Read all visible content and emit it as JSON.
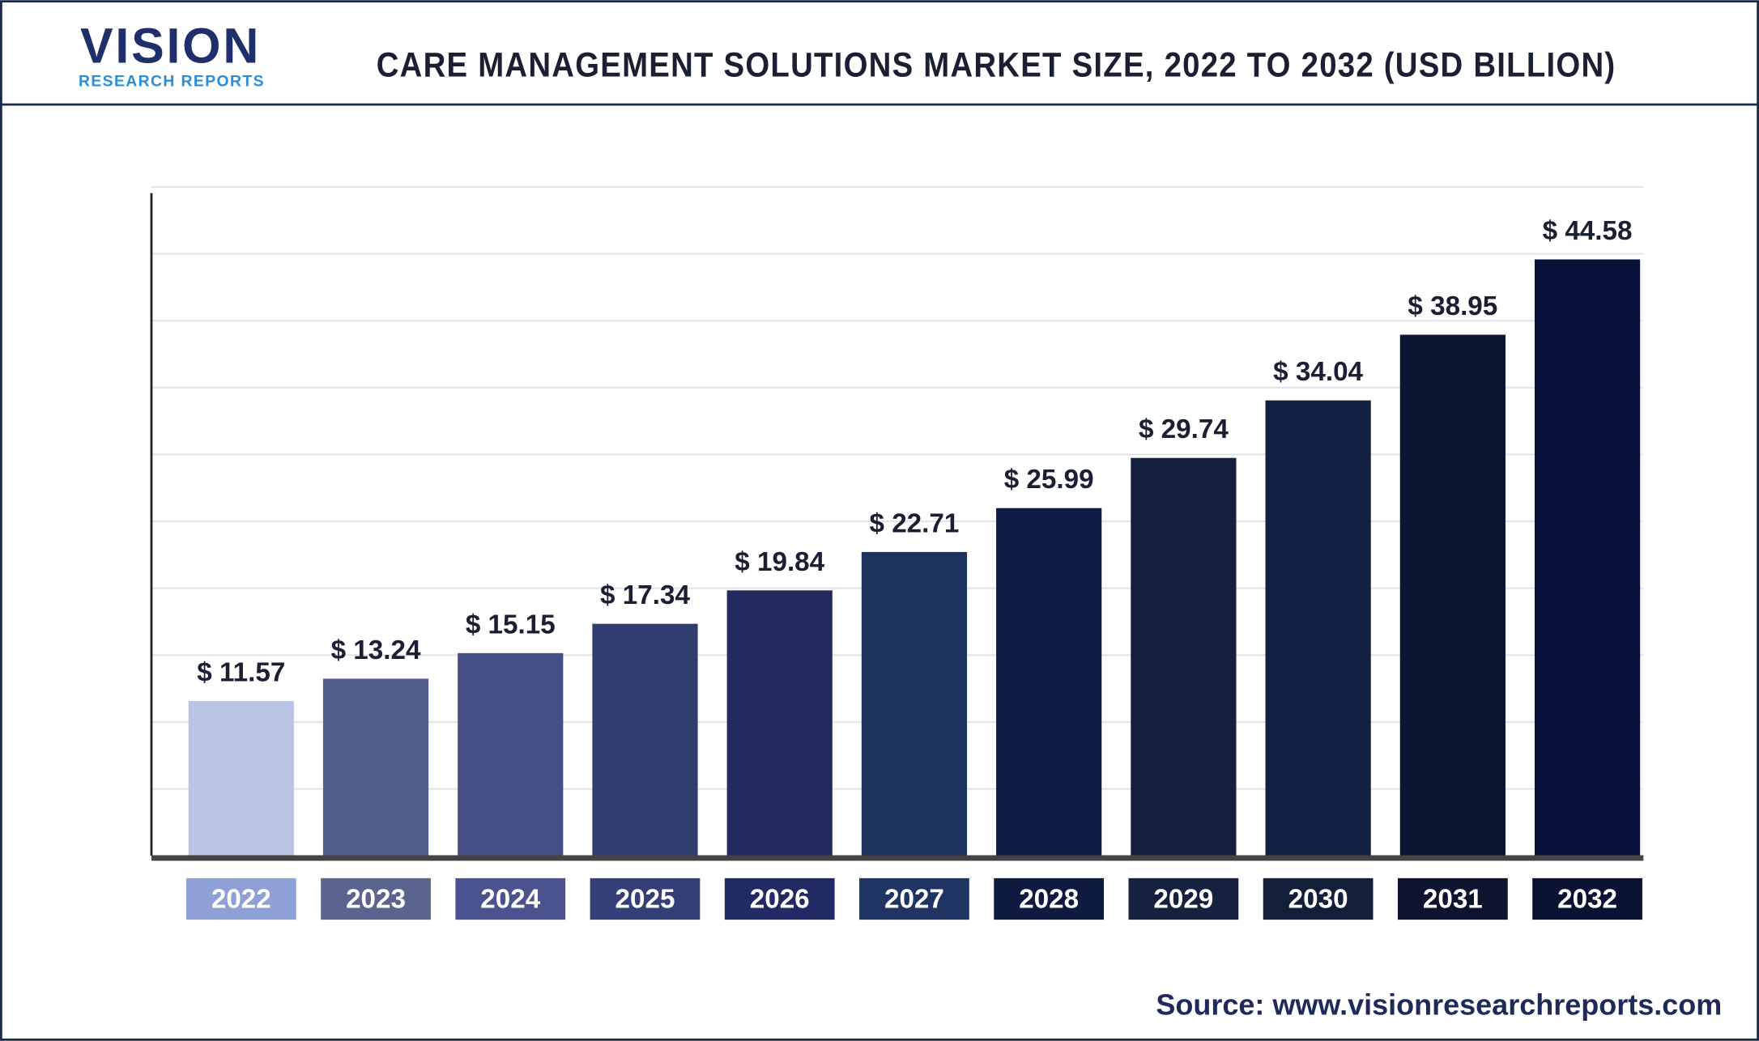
{
  "brand": {
    "name": "VISION",
    "tagline": "RESEARCH REPORTS"
  },
  "source": "Source: www.visionresearchreports.com",
  "chart_data": {
    "type": "bar",
    "title": "CARE MANAGEMENT SOLUTIONS MARKET SIZE, 2022 TO 2032 (USD BILLION)",
    "categories": [
      "2022",
      "2023",
      "2024",
      "2025",
      "2026",
      "2027",
      "2028",
      "2029",
      "2030",
      "2031",
      "2032"
    ],
    "values": [
      11.57,
      13.24,
      15.15,
      17.34,
      19.84,
      22.71,
      25.99,
      29.74,
      34.04,
      38.95,
      44.58
    ],
    "value_labels": [
      "$ 11.57",
      "$ 13.24",
      "$ 15.15",
      "$ 17.34",
      "$ 19.84",
      "$ 22.71",
      "$ 25.99",
      "$ 29.74",
      "$ 34.04",
      "$ 38.95",
      "$ 44.58"
    ],
    "colors": [
      "#b9c3e3",
      "#525e8b",
      "#454f86",
      "#323d6f",
      "#232a60",
      "#1e3360",
      "#111c45",
      "#15203f",
      "#112040",
      "#0b1430",
      "#08123a"
    ],
    "label_colors": [
      "#8fa0d6",
      "#5a648f",
      "#4a5290",
      "#343e78",
      "#222a66",
      "#1f3462",
      "#0f1a40",
      "#16203f",
      "#121e3a",
      "#0c1430",
      "#0a1233"
    ],
    "ylim": [
      0,
      50
    ],
    "yticks": [
      5,
      10,
      15,
      20,
      25,
      30,
      35,
      40,
      45,
      50
    ],
    "grid": true
  }
}
